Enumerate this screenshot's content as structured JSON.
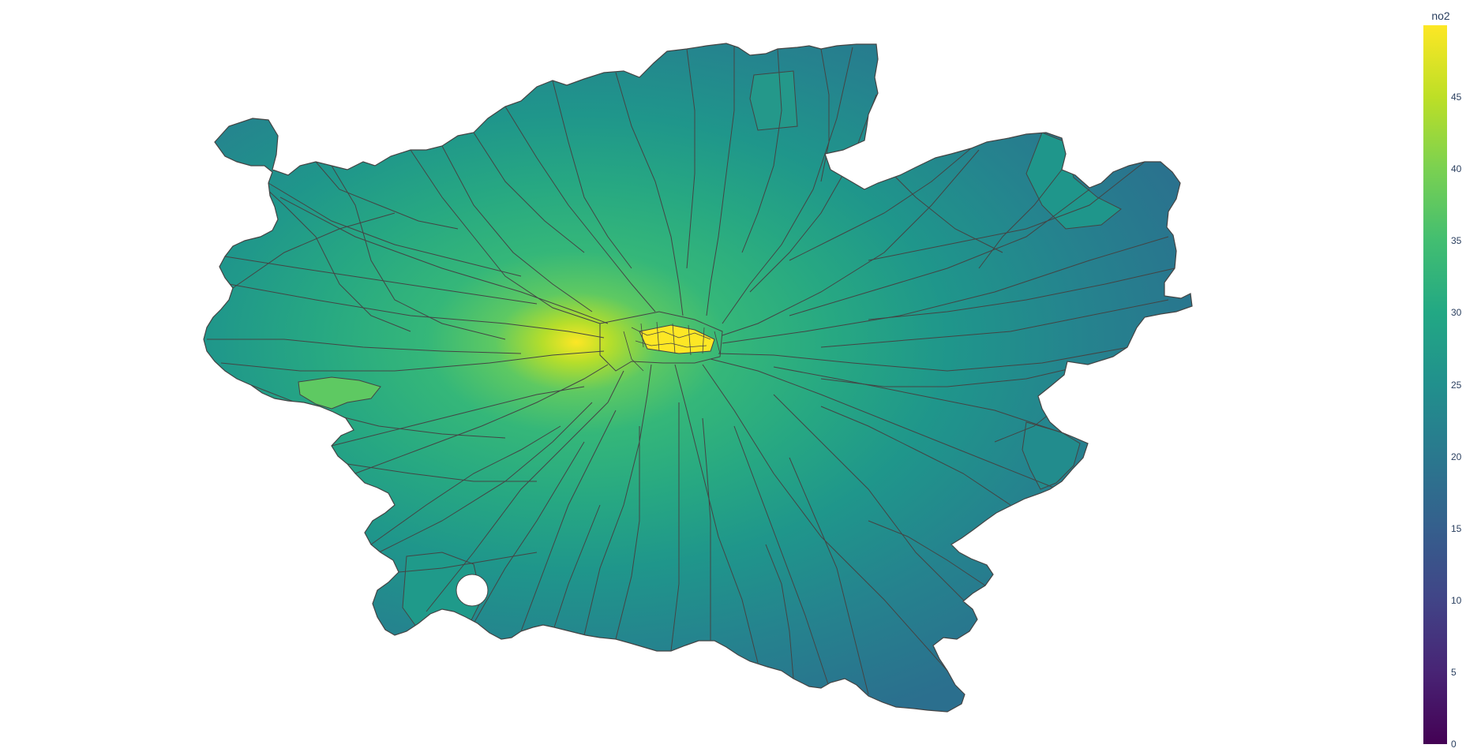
{
  "map": {
    "type": "choropleth",
    "colorscale": "viridis",
    "color_range": [
      0,
      50
    ],
    "colors": {
      "low": "#440154",
      "mid": "#21908d",
      "high": "#fde725",
      "border": "#444444",
      "background": "#ffffff"
    }
  },
  "colorbar": {
    "title": "no2",
    "ticks": [
      "0",
      "5",
      "10",
      "15",
      "20",
      "25",
      "30",
      "35",
      "40",
      "45"
    ],
    "tick_values": [
      0,
      5,
      10,
      15,
      20,
      25,
      30,
      35,
      40,
      45
    ]
  }
}
